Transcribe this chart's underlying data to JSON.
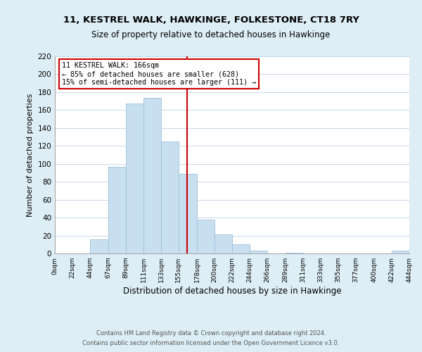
{
  "title": "11, KESTREL WALK, HAWKINGE, FOLKESTONE, CT18 7RY",
  "subtitle": "Size of property relative to detached houses in Hawkinge",
  "xlabel": "Distribution of detached houses by size in Hawkinge",
  "ylabel": "Number of detached properties",
  "bin_edges": [
    0,
    22,
    44,
    67,
    89,
    111,
    133,
    155,
    178,
    200,
    222,
    244,
    266,
    289,
    311,
    333,
    355,
    377,
    400,
    422,
    444
  ],
  "bar_heights": [
    0,
    0,
    16,
    97,
    167,
    174,
    125,
    89,
    38,
    21,
    10,
    3,
    0,
    1,
    0,
    0,
    0,
    0,
    0,
    3
  ],
  "bar_color": "#c8dff0",
  "bar_edge_color": "#a0c0dc",
  "highlight_x": 166,
  "vline_color": "#cc0000",
  "annotation_box_edge_color": "#cc0000",
  "annotation_title": "11 KESTREL WALK: 166sqm",
  "annotation_line1": "← 85% of detached houses are smaller (628)",
  "annotation_line2": "15% of semi-detached houses are larger (111) →",
  "xlim": [
    0,
    444
  ],
  "ylim": [
    0,
    220
  ],
  "yticks": [
    0,
    20,
    40,
    60,
    80,
    100,
    120,
    140,
    160,
    180,
    200,
    220
  ],
  "xtick_labels": [
    "0sqm",
    "22sqm",
    "44sqm",
    "67sqm",
    "89sqm",
    "111sqm",
    "133sqm",
    "155sqm",
    "178sqm",
    "200sqm",
    "222sqm",
    "244sqm",
    "266sqm",
    "289sqm",
    "311sqm",
    "333sqm",
    "355sqm",
    "377sqm",
    "400sqm",
    "422sqm",
    "444sqm"
  ],
  "xtick_positions": [
    0,
    22,
    44,
    67,
    89,
    111,
    133,
    155,
    178,
    200,
    222,
    244,
    266,
    289,
    311,
    333,
    355,
    377,
    400,
    422,
    444
  ],
  "footnote1": "Contains HM Land Registry data © Crown copyright and database right 2024.",
  "footnote2": "Contains public sector information licensed under the Open Government Licence v3.0.",
  "background_color": "#ddeef6",
  "plot_bg_color": "#ffffff"
}
